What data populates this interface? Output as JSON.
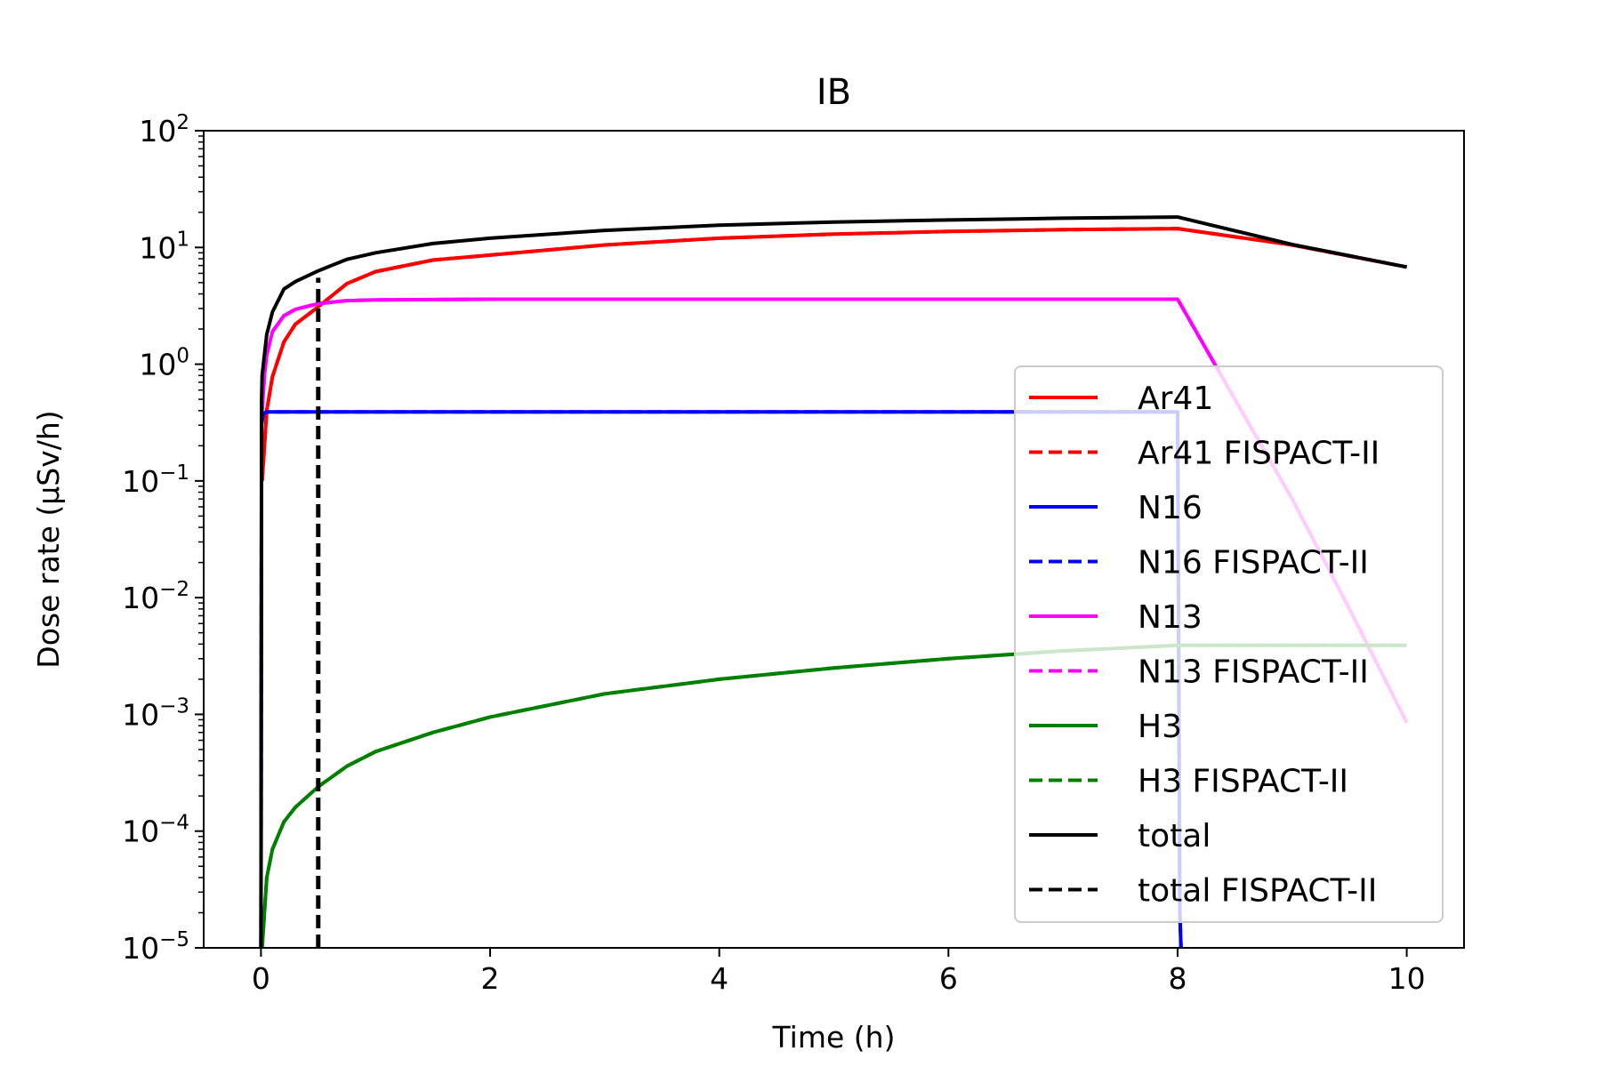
{
  "chart_data": {
    "type": "line",
    "title": "IB",
    "xlabel": "Time (h)",
    "ylabel": "Dose rate (μSv/h)",
    "xlim": [
      -0.5,
      10.5
    ],
    "ylim": [
      1e-05,
      100
    ],
    "yscale": "log",
    "xticks": [
      0,
      2,
      4,
      6,
      8,
      10
    ],
    "xtick_labels": [
      "0",
      "2",
      "4",
      "6",
      "8",
      "10"
    ],
    "yticks": [
      {
        "base": "10",
        "exp": "2",
        "value": 100
      },
      {
        "base": "10",
        "exp": "1",
        "value": 10
      },
      {
        "base": "10",
        "exp": "0",
        "value": 1
      },
      {
        "base": "10",
        "exp": "−1",
        "value": 0.1
      },
      {
        "base": "10",
        "exp": "−2",
        "value": 0.01
      },
      {
        "base": "10",
        "exp": "−3",
        "value": 0.001
      },
      {
        "base": "10",
        "exp": "−4",
        "value": 0.0001
      },
      {
        "base": "10",
        "exp": "−5",
        "value": 1e-05
      }
    ],
    "grid": false,
    "legend_position": "lower-right",
    "series": [
      {
        "name": "Ar41",
        "color": "#ff0000",
        "dash": "solid",
        "x": [
          0.01,
          0.05,
          0.1,
          0.2,
          0.3,
          0.5,
          0.75,
          1,
          1.5,
          2,
          3,
          4,
          5,
          6,
          7,
          8,
          9,
          10
        ],
        "y": [
          0.1,
          0.4,
          0.78,
          1.55,
          2.2,
          3.1,
          4.9,
          6.2,
          7.8,
          8.6,
          10.5,
          12.0,
          13.0,
          13.7,
          14.2,
          14.5,
          10.5,
          6.8
        ]
      },
      {
        "name": "Ar41 FISPACT-II",
        "color": "#ff0000",
        "dash": "dashed",
        "x": [
          0.01,
          0.05,
          0.1,
          0.2,
          0.3,
          0.5,
          0.75,
          1,
          1.5,
          2,
          3,
          4,
          5,
          6,
          7,
          8,
          9,
          10
        ],
        "y": [
          0.1,
          0.4,
          0.78,
          1.55,
          2.2,
          3.1,
          4.9,
          6.2,
          7.8,
          8.6,
          10.5,
          12.0,
          13.0,
          13.7,
          14.2,
          14.5,
          10.5,
          6.8
        ]
      },
      {
        "name": "N16",
        "color": "#0000ff",
        "dash": "solid",
        "x": [
          0,
          0.005,
          0.02,
          0.05,
          0.1,
          1,
          4,
          7.9,
          8.0,
          8.02,
          8.03
        ],
        "y": [
          1e-05,
          0.3,
          0.38,
          0.39,
          0.39,
          0.39,
          0.39,
          0.39,
          0.39,
          2e-05,
          1e-05
        ]
      },
      {
        "name": "N16 FISPACT-II",
        "color": "#0000ff",
        "dash": "dashed",
        "x": [
          0,
          0.005,
          0.02,
          0.05,
          0.1,
          1,
          4,
          7.9,
          8.0,
          8.02,
          8.03
        ],
        "y": [
          1e-05,
          0.3,
          0.38,
          0.39,
          0.39,
          0.39,
          0.39,
          0.39,
          0.39,
          2e-05,
          1e-05
        ]
      },
      {
        "name": "N13",
        "color": "#ff00ff",
        "dash": "solid",
        "x": [
          0.01,
          0.03,
          0.05,
          0.1,
          0.2,
          0.3,
          0.5,
          0.75,
          1,
          2,
          4,
          6,
          8,
          8.5,
          9,
          9.5,
          10
        ],
        "y": [
          0.4,
          0.8,
          1.2,
          1.9,
          2.6,
          2.95,
          3.3,
          3.5,
          3.55,
          3.6,
          3.6,
          3.6,
          3.6,
          0.5,
          0.07,
          0.008,
          0.00085
        ]
      },
      {
        "name": "N13 FISPACT-II",
        "color": "#ff00ff",
        "dash": "dashed",
        "x": [
          0.01,
          0.03,
          0.05,
          0.1,
          0.2,
          0.3,
          0.5,
          0.75,
          1,
          2,
          4,
          6,
          8,
          8.5,
          9,
          9.5,
          10
        ],
        "y": [
          0.4,
          0.8,
          1.2,
          1.9,
          2.6,
          2.95,
          3.3,
          3.5,
          3.55,
          3.6,
          3.6,
          3.6,
          3.6,
          0.5,
          0.07,
          0.008,
          0.00085
        ]
      },
      {
        "name": "H3",
        "color": "#008000",
        "dash": "solid",
        "x": [
          0.01,
          0.05,
          0.1,
          0.2,
          0.3,
          0.5,
          0.75,
          1,
          1.5,
          2,
          3,
          4,
          5,
          6,
          7,
          8,
          9,
          10
        ],
        "y": [
          1e-05,
          4e-05,
          7e-05,
          0.00012,
          0.00016,
          0.00024,
          0.00036,
          0.00048,
          0.0007,
          0.00095,
          0.0015,
          0.002,
          0.0025,
          0.003,
          0.0035,
          0.0039,
          0.0039,
          0.0039
        ]
      },
      {
        "name": "H3 FISPACT-II",
        "color": "#008000",
        "dash": "dashed",
        "x": [
          0.01,
          0.05,
          0.1,
          0.2,
          0.3,
          0.5,
          0.75,
          1,
          1.5,
          2,
          3,
          4,
          5,
          6,
          7,
          8,
          9,
          10
        ],
        "y": [
          1e-05,
          4e-05,
          7e-05,
          0.00012,
          0.00016,
          0.00024,
          0.00036,
          0.00048,
          0.0007,
          0.00095,
          0.0015,
          0.002,
          0.0025,
          0.003,
          0.0035,
          0.0039,
          0.0039,
          0.0039
        ]
      },
      {
        "name": "total",
        "color": "#000000",
        "dash": "solid",
        "x": [
          0,
          0.005,
          0.01,
          0.05,
          0.1,
          0.2,
          0.3,
          0.5,
          0.75,
          1,
          1.5,
          2,
          3,
          4,
          5,
          6,
          7,
          8,
          9,
          10
        ],
        "y": [
          1e-05,
          0.5,
          0.8,
          1.8,
          2.8,
          4.4,
          5.1,
          6.3,
          7.9,
          9.0,
          10.8,
          12.0,
          14.0,
          15.5,
          16.5,
          17.2,
          17.8,
          18.2,
          10.6,
          6.8
        ]
      },
      {
        "name": "total FISPACT-II",
        "color": "#000000",
        "dash": "dashed",
        "x": [
          0.5,
          0.5
        ],
        "y": [
          1e-05,
          5.5
        ]
      }
    ]
  }
}
